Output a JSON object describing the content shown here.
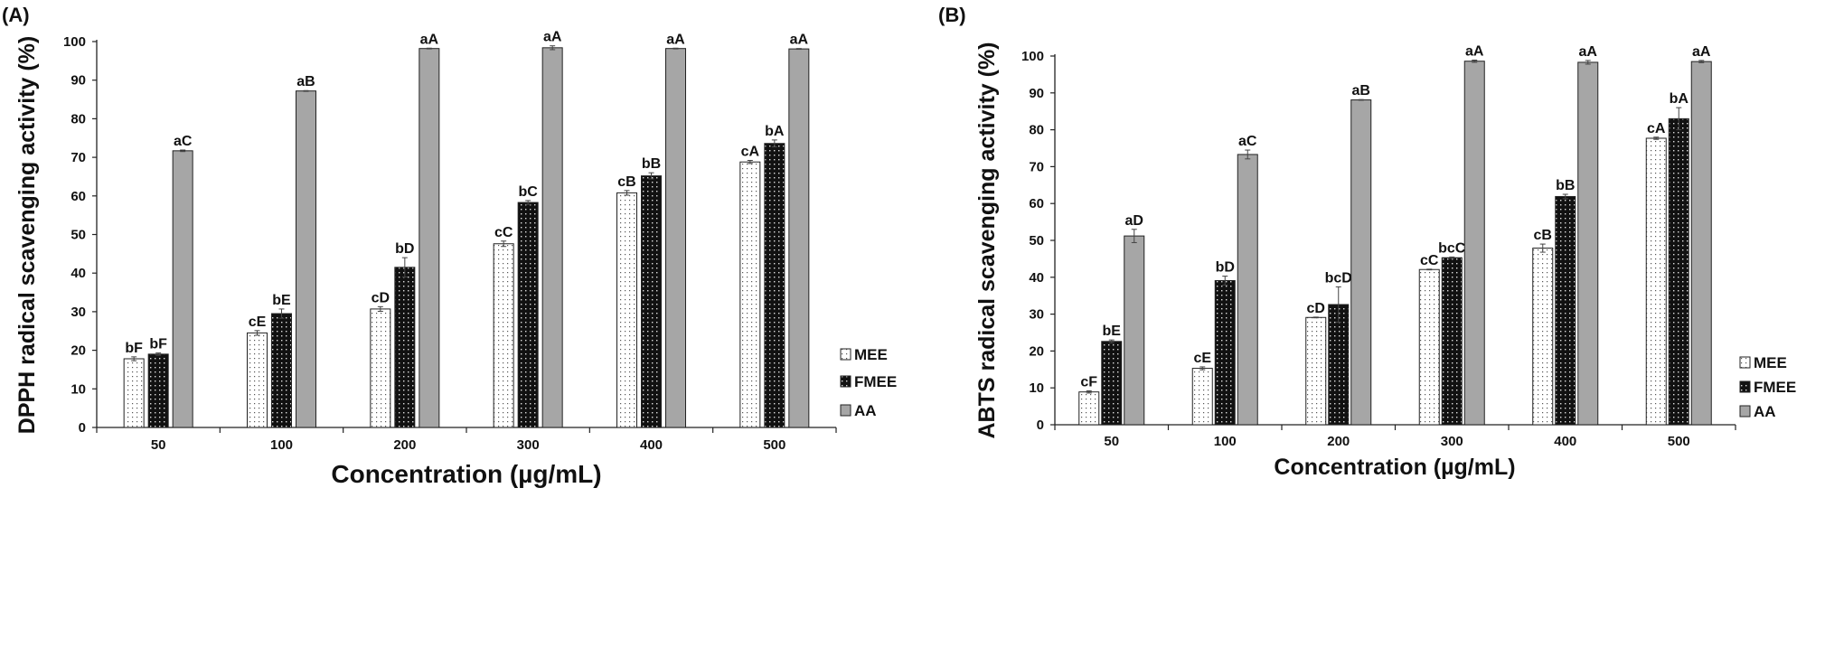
{
  "chart_data": [
    {
      "type": "bar",
      "panel_label": "(A)",
      "xlabel": "Concentration (µg/mL)",
      "ylabel": "DPPH radical scavenging activity (%)",
      "ylim": [
        0,
        100
      ],
      "yticks": [
        0,
        10,
        20,
        30,
        40,
        50,
        60,
        70,
        80,
        90,
        100
      ],
      "categories": [
        "50",
        "100",
        "200",
        "300",
        "400",
        "500"
      ],
      "legend_position": "bottom-right",
      "series": [
        {
          "name": "MEE",
          "values": [
            17.8,
            24.5,
            30.7,
            47.6,
            60.8,
            68.8
          ],
          "errors": [
            0.5,
            0.6,
            0.6,
            0.7,
            0.6,
            0.4
          ],
          "labels": [
            "bF",
            "cE",
            "cD",
            "cC",
            "cB",
            "cA"
          ]
        },
        {
          "name": "FMEE",
          "values": [
            19.0,
            29.5,
            41.5,
            58.3,
            65.2,
            73.6
          ],
          "errors": [
            0.3,
            1.2,
            2.5,
            0.5,
            0.8,
            0.9
          ],
          "labels": [
            "bF",
            "bE",
            "bD",
            "bC",
            "bB",
            "bA"
          ]
        },
        {
          "name": "AA",
          "values": [
            71.7,
            87.2,
            98.2,
            98.4,
            98.2,
            98.1
          ],
          "errors": [
            0.2,
            0.1,
            0.1,
            0.5,
            0.1,
            0.1
          ],
          "labels": [
            "aC",
            "aB",
            "aA",
            "aA",
            "aA",
            "aA"
          ]
        }
      ]
    },
    {
      "type": "bar",
      "panel_label": "(B)",
      "xlabel": "Concentration (µg/mL)",
      "ylabel": "ABTS radical scavenging activity (%)",
      "ylim": [
        0,
        100
      ],
      "yticks": [
        0,
        10,
        20,
        30,
        40,
        50,
        60,
        70,
        80,
        90,
        100
      ],
      "categories": [
        "50",
        "100",
        "200",
        "300",
        "400",
        "500"
      ],
      "legend_position": "bottom-right",
      "series": [
        {
          "name": "MEE",
          "values": [
            8.9,
            15.3,
            29.1,
            42.1,
            47.9,
            77.7
          ],
          "errors": [
            0.3,
            0.4,
            0.1,
            0.1,
            1.1,
            0.3
          ],
          "labels": [
            "cF",
            "cE",
            "cD",
            "cC",
            "cB",
            "cA"
          ]
        },
        {
          "name": "FMEE",
          "values": [
            22.6,
            39.1,
            32.6,
            45.3,
            61.9,
            83.0
          ],
          "errors": [
            0.4,
            1.2,
            4.8,
            0.2,
            0.6,
            3.0
          ],
          "labels": [
            "bE",
            "bD",
            "bcD",
            "bcC",
            "bB",
            "bA"
          ]
        },
        {
          "name": "AA",
          "values": [
            51.2,
            73.3,
            88.1,
            98.6,
            98.3,
            98.5
          ],
          "errors": [
            1.8,
            1.2,
            0.1,
            0.3,
            0.5,
            0.3
          ],
          "labels": [
            "aD",
            "aC",
            "aB",
            "aA",
            "aA",
            "aA"
          ]
        }
      ]
    }
  ],
  "colors": {
    "AA": "#a6a6a6",
    "FMEE": "#111111",
    "MEE": "#ffffff",
    "axis": "#222222"
  }
}
